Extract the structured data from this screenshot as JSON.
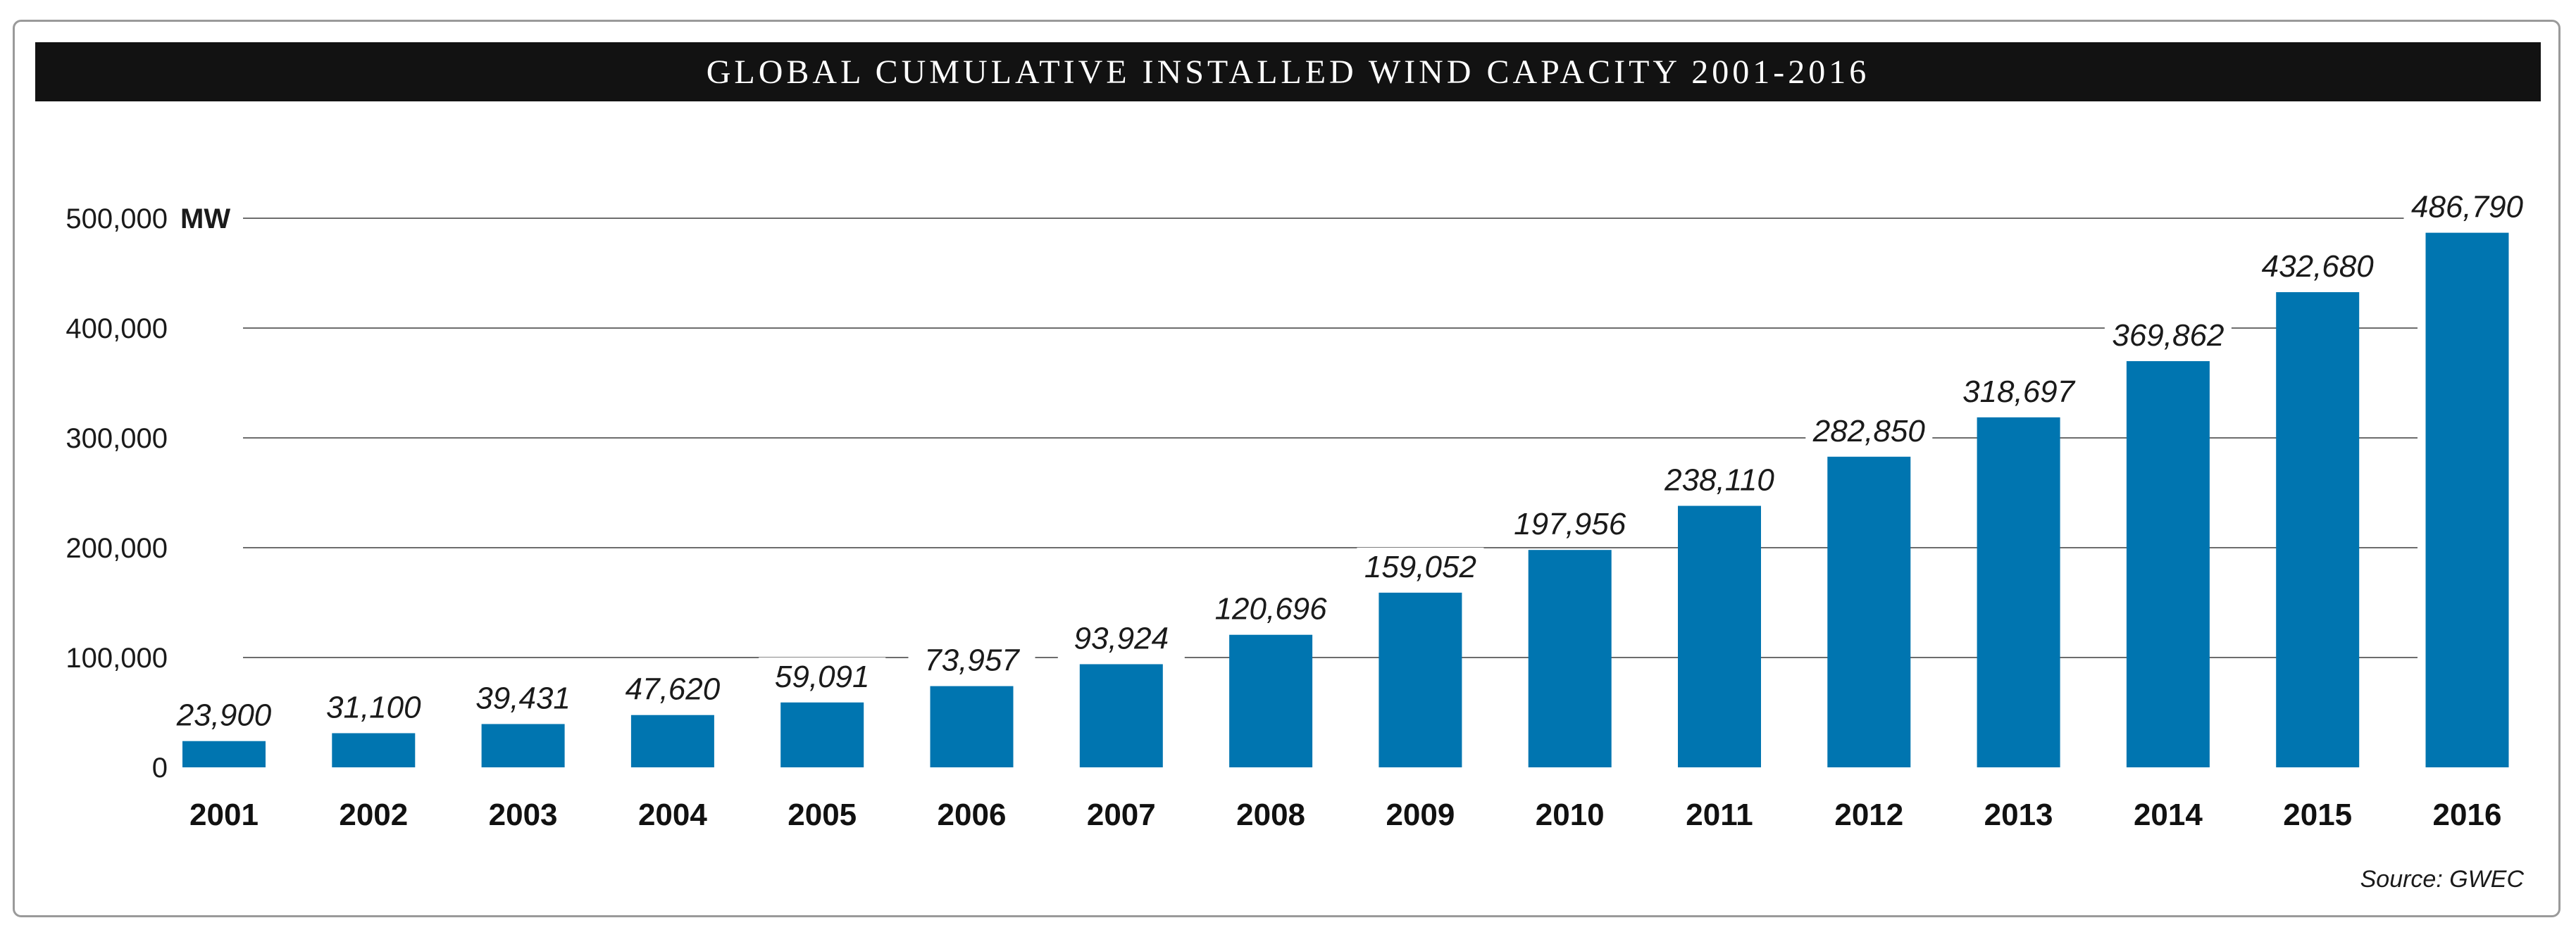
{
  "title": "GLOBAL CUMULATIVE INSTALLED WIND CAPACITY 2001-2016",
  "source": "Source: GWEC",
  "colors": {
    "bar": "#0075b0",
    "title_bg": "#121212",
    "title_text": "#ffffff",
    "grid": "#6d6d6d"
  },
  "chart_data": {
    "type": "bar",
    "title": "GLOBAL CUMULATIVE INSTALLED WIND CAPACITY 2001-2016",
    "ylabel": "MW",
    "xlabel": "",
    "categories": [
      "2001",
      "2002",
      "2003",
      "2004",
      "2005",
      "2006",
      "2007",
      "2008",
      "2009",
      "2010",
      "2011",
      "2012",
      "2013",
      "2014",
      "2015",
      "2016"
    ],
    "values": [
      23900,
      31100,
      39431,
      47620,
      59091,
      73957,
      93924,
      120696,
      159052,
      197956,
      238110,
      282850,
      318697,
      369862,
      432680,
      486790
    ],
    "value_labels": [
      "23,900",
      "31,100",
      "39,431",
      "47,620",
      "59,091",
      "73,957",
      "93,924",
      "120,696",
      "159,052",
      "197,956",
      "238,110",
      "282,850",
      "318,697",
      "369,862",
      "432,680",
      "486,790"
    ],
    "yticks": [
      0,
      100000,
      200000,
      300000,
      400000,
      500000
    ],
    "ytick_labels": [
      "0",
      "100,000",
      "200,000",
      "300,000",
      "400,000",
      "500,000"
    ],
    "ylim": [
      0,
      500000
    ],
    "grid": true
  }
}
